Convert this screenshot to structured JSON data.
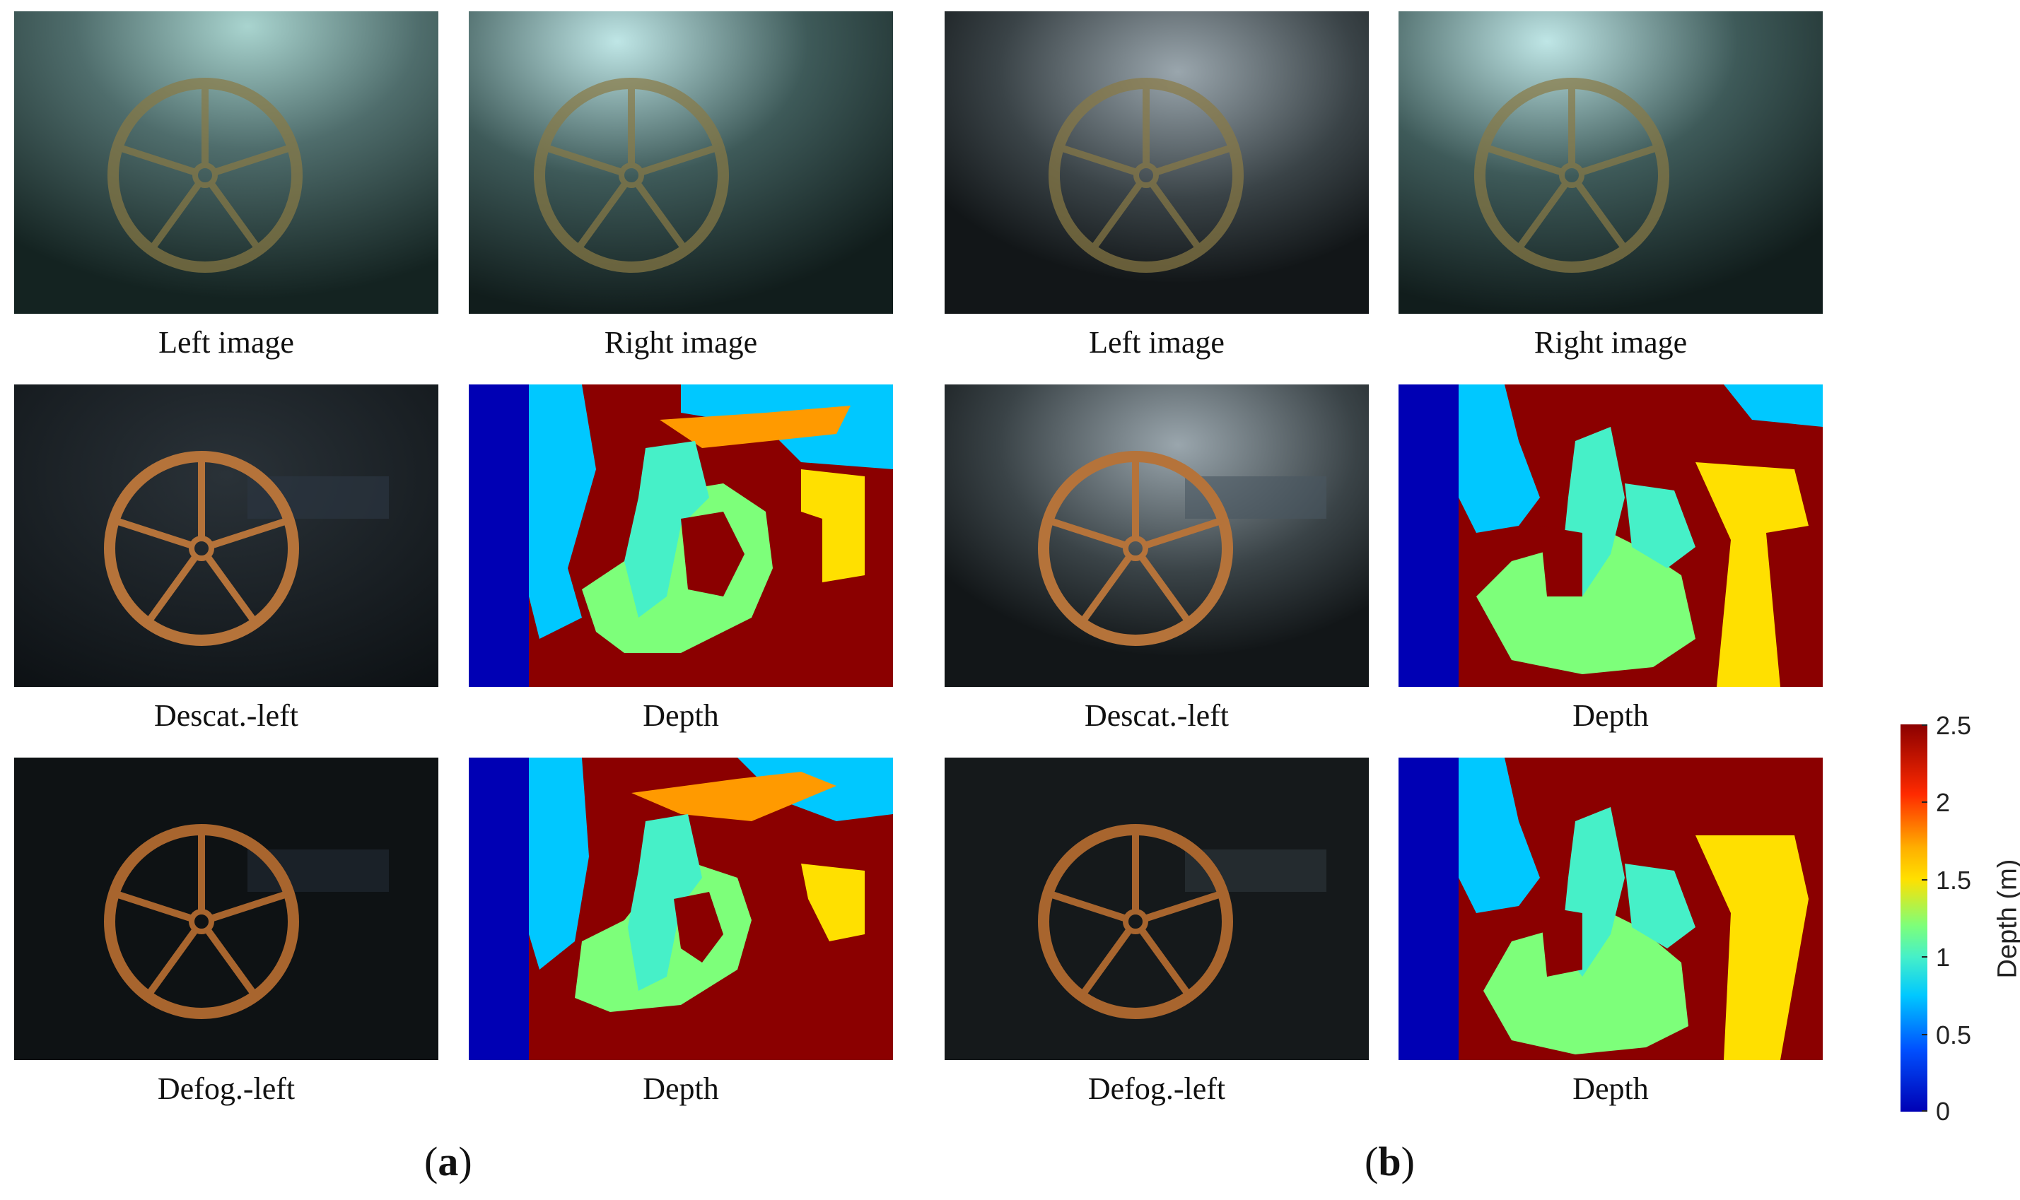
{
  "panels": [
    {
      "label": "a",
      "captions": {
        "left_image": "Left image",
        "right_image": "Right image",
        "descat_left": "Descat.-left",
        "depth_1": "Depth",
        "defog_left": "Defog.-left",
        "depth_2": "Depth"
      }
    },
    {
      "label": "b",
      "captions": {
        "left_image": "Left image",
        "right_image": "Right image",
        "descat_left": "Descat.-left",
        "depth_1": "Depth",
        "defog_left": "Defog.-left",
        "depth_2": "Depth"
      }
    }
  ],
  "colorbar": {
    "title": "Depth (m)",
    "ticks": [
      "2.5",
      "2",
      "1.5",
      "1",
      "0.5",
      "0"
    ],
    "colors": [
      "#8b0000",
      "#ff2a00",
      "#ffe000",
      "#46f0c8",
      "#00c8ff",
      "#0000b4"
    ]
  }
}
